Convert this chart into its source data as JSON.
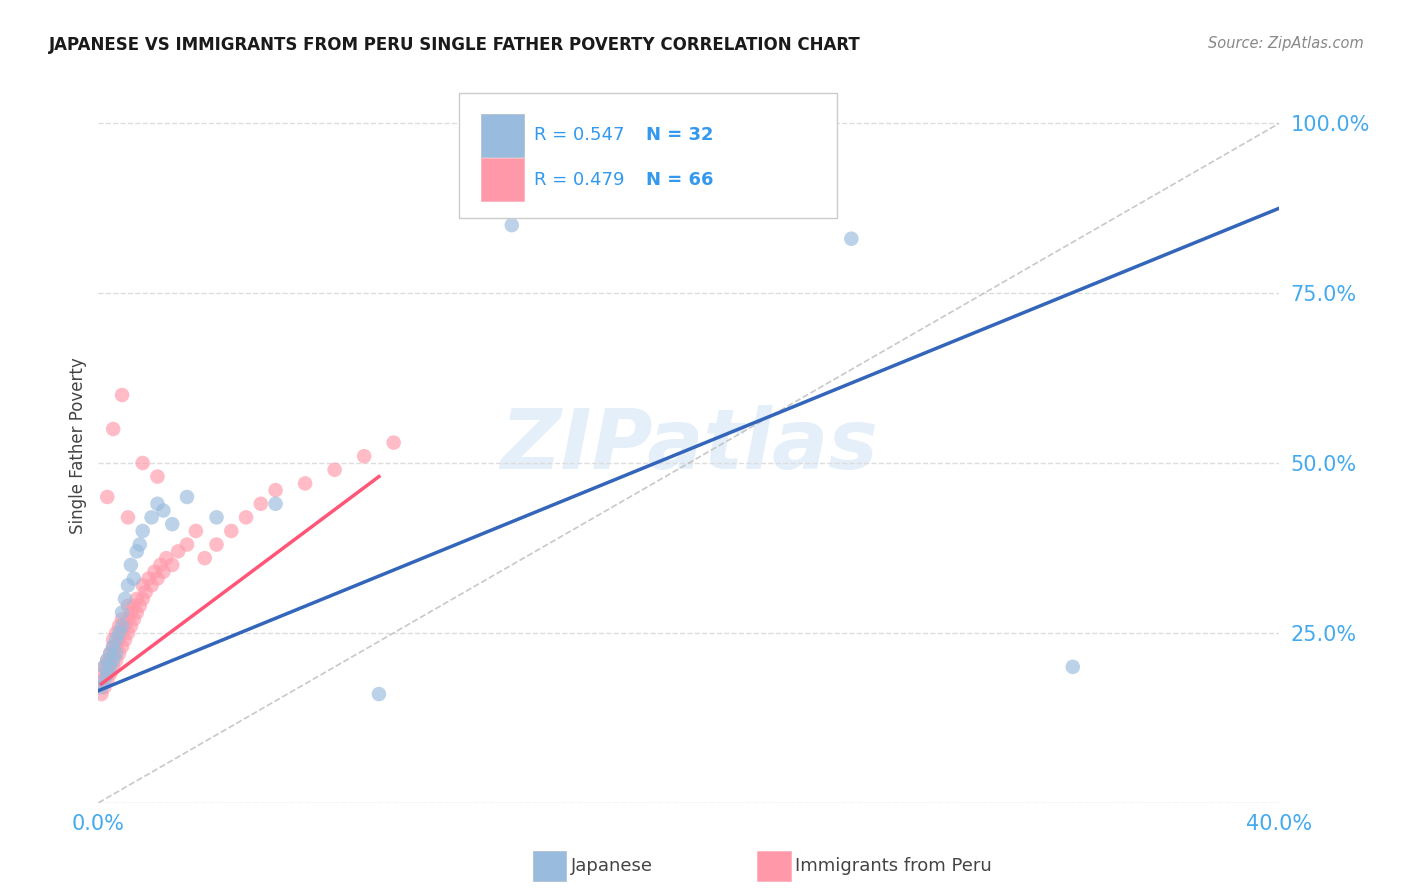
{
  "title": "JAPANESE VS IMMIGRANTS FROM PERU SINGLE FATHER POVERTY CORRELATION CHART",
  "source": "Source: ZipAtlas.com",
  "ylabel": "Single Father Poverty",
  "watermark": "ZIPatlas",
  "color_blue": "#99BBDD",
  "color_pink": "#FF99AA",
  "color_blue_line": "#3366BB",
  "color_pink_line": "#FF5577",
  "color_blue_text": "#3399EE",
  "color_axis_text": "#44AAEE",
  "diag_line_color": "#BBBBBB",
  "bg_color": "#FFFFFF",
  "grid_color": "#DDDDDD",
  "xlim": [
    0.0,
    0.4
  ],
  "ylim": [
    0.0,
    1.05
  ],
  "japanese_x": [
    0.001,
    0.002,
    0.002,
    0.003,
    0.003,
    0.004,
    0.004,
    0.005,
    0.005,
    0.006,
    0.006,
    0.007,
    0.008,
    0.008,
    0.009,
    0.01,
    0.011,
    0.012,
    0.013,
    0.014,
    0.015,
    0.018,
    0.02,
    0.022,
    0.025,
    0.03,
    0.04,
    0.06,
    0.095,
    0.14,
    0.255,
    0.33
  ],
  "japanese_y": [
    0.17,
    0.18,
    0.2,
    0.19,
    0.21,
    0.2,
    0.22,
    0.21,
    0.23,
    0.22,
    0.24,
    0.25,
    0.26,
    0.28,
    0.3,
    0.32,
    0.35,
    0.33,
    0.37,
    0.38,
    0.4,
    0.42,
    0.44,
    0.43,
    0.41,
    0.45,
    0.42,
    0.44,
    0.16,
    0.85,
    0.83,
    0.2
  ],
  "peru_x": [
    0.001,
    0.001,
    0.002,
    0.002,
    0.002,
    0.003,
    0.003,
    0.003,
    0.004,
    0.004,
    0.004,
    0.005,
    0.005,
    0.005,
    0.005,
    0.006,
    0.006,
    0.006,
    0.007,
    0.007,
    0.007,
    0.008,
    0.008,
    0.008,
    0.009,
    0.009,
    0.01,
    0.01,
    0.01,
    0.011,
    0.011,
    0.012,
    0.012,
    0.013,
    0.013,
    0.014,
    0.015,
    0.015,
    0.016,
    0.017,
    0.018,
    0.019,
    0.02,
    0.021,
    0.022,
    0.023,
    0.025,
    0.027,
    0.03,
    0.033,
    0.036,
    0.04,
    0.045,
    0.05,
    0.055,
    0.06,
    0.07,
    0.08,
    0.09,
    0.1,
    0.003,
    0.005,
    0.008,
    0.01,
    0.015,
    0.02
  ],
  "peru_y": [
    0.16,
    0.18,
    0.17,
    0.19,
    0.2,
    0.18,
    0.2,
    0.21,
    0.19,
    0.21,
    0.22,
    0.2,
    0.22,
    0.23,
    0.24,
    0.21,
    0.23,
    0.25,
    0.22,
    0.24,
    0.26,
    0.23,
    0.25,
    0.27,
    0.24,
    0.26,
    0.25,
    0.27,
    0.29,
    0.26,
    0.28,
    0.27,
    0.29,
    0.28,
    0.3,
    0.29,
    0.3,
    0.32,
    0.31,
    0.33,
    0.32,
    0.34,
    0.33,
    0.35,
    0.34,
    0.36,
    0.35,
    0.37,
    0.38,
    0.4,
    0.36,
    0.38,
    0.4,
    0.42,
    0.44,
    0.46,
    0.47,
    0.49,
    0.51,
    0.53,
    0.45,
    0.55,
    0.6,
    0.42,
    0.5,
    0.48
  ],
  "blue_line_x": [
    0.0,
    0.4
  ],
  "blue_line_y": [
    0.165,
    0.875
  ],
  "pink_line_x": [
    0.001,
    0.095
  ],
  "pink_line_y": [
    0.175,
    0.48
  ]
}
